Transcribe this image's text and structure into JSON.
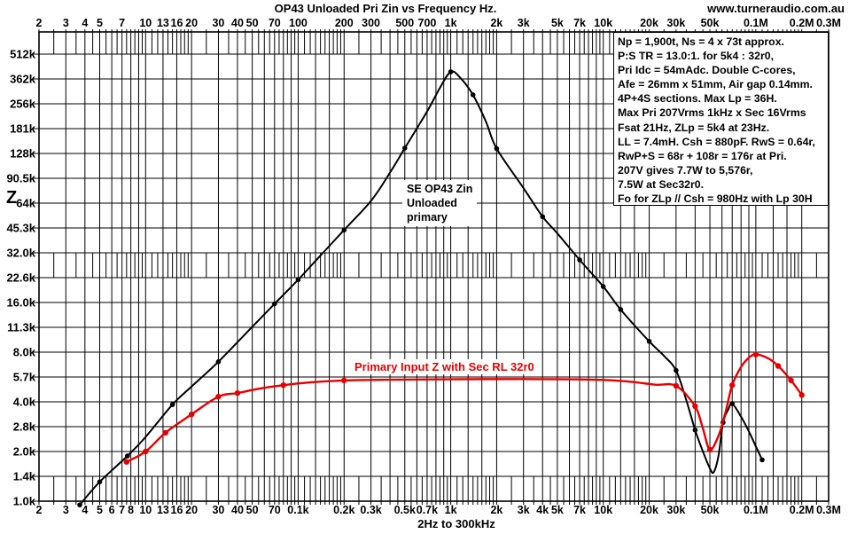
{
  "header": {
    "title": "OP43 Unloaded Pri Zin vs Frequency Hz.",
    "website": "www.turneraudio.com.au"
  },
  "axis": {
    "y_symbol": "Z",
    "x_bottom_caption": "2Hz to 300kHz"
  },
  "annotation": {
    "lines": [
      "Np = 1,900t, Ns = 4 x 73t approx.",
      "P:S TR = 13.0:1. for 5k4 : 32r0,",
      "Pri Idc = 54mAdc. Double C-cores,",
      "Afe = 26mm x 51mm, Air gap  0.14mm.",
      "4P+4S sections.  Max Lp = 36H.",
      "Max Pri 207Vrms 1kHz x Sec 16Vrms",
      "Fsat 21Hz, ZLp = 5k4 at 23Hz.",
      "LL = 7.4mH. Csh = 880pF.  RwS = 0.64r,",
      "RwP+S = 68r + 108r = 176r at Pri.",
      "207V gives 7.7W to 5,576r,",
      "7.5W at Sec32r0.",
      "Fo for ZLp // Csh = 980Hz with Lp 30H"
    ]
  },
  "curve_labels": {
    "black": [
      "SE OP43 Zin",
      "Unloaded",
      "primary"
    ],
    "red": "Primary Input Z with Sec RL 32r0"
  },
  "chart_data": {
    "type": "line",
    "title": "OP43 Unloaded Pri Zin vs Frequency Hz.",
    "xlabel": "2Hz to 300kHz",
    "ylabel": "Z (ohms)",
    "x_scale": "log",
    "y_scale": "log",
    "grid": "on",
    "xlim": [
      2,
      300000
    ],
    "ylim": [
      1000,
      698000
    ],
    "x_ticks_top": [
      [
        2,
        "2"
      ],
      [
        3,
        "3"
      ],
      [
        4,
        "4"
      ],
      [
        5,
        "5"
      ],
      [
        7,
        "7"
      ],
      [
        10,
        "10"
      ],
      [
        13,
        "13"
      ],
      [
        16,
        "16"
      ],
      [
        20,
        "20"
      ],
      [
        30,
        "30"
      ],
      [
        40,
        "40"
      ],
      [
        50,
        "50"
      ],
      [
        70,
        "70"
      ],
      [
        100,
        "100"
      ],
      [
        200,
        "200"
      ],
      [
        300,
        "300"
      ],
      [
        500,
        "500"
      ],
      [
        700,
        "700"
      ],
      [
        1000,
        "1k"
      ],
      [
        2000,
        "2k"
      ],
      [
        3000,
        "3k"
      ],
      [
        5000,
        "5k"
      ],
      [
        7000,
        "7k"
      ],
      [
        10000,
        "10k"
      ],
      [
        20000,
        "20k"
      ],
      [
        30000,
        "30k"
      ],
      [
        50000,
        "50k"
      ],
      [
        100000,
        "0.1M"
      ],
      [
        200000,
        "0.2M"
      ],
      [
        300000,
        "0.3M"
      ]
    ],
    "x_ticks_bottom": [
      [
        2,
        "2"
      ],
      [
        3,
        "3"
      ],
      [
        4,
        "4"
      ],
      [
        5,
        "5"
      ],
      [
        6,
        "6"
      ],
      [
        7,
        "7"
      ],
      [
        8,
        "8"
      ],
      [
        10,
        "10"
      ],
      [
        13,
        "13"
      ],
      [
        16,
        "16"
      ],
      [
        20,
        "20"
      ],
      [
        30,
        "30"
      ],
      [
        40,
        "40"
      ],
      [
        50,
        "50"
      ],
      [
        70,
        "70"
      ],
      [
        100,
        "0.1k"
      ],
      [
        200,
        "0.2k"
      ],
      [
        300,
        "0.3k"
      ],
      [
        500,
        "0.5k"
      ],
      [
        700,
        "0.7k"
      ],
      [
        1000,
        "1k"
      ],
      [
        2000,
        "2k"
      ],
      [
        3000,
        "3k"
      ],
      [
        4000,
        "4k"
      ],
      [
        5000,
        "5k"
      ],
      [
        7000,
        "7k"
      ],
      [
        10000,
        "10k"
      ],
      [
        20000,
        "20k"
      ],
      [
        30000,
        "30k"
      ],
      [
        50000,
        "50k"
      ],
      [
        100000,
        "0.1M"
      ],
      [
        200000,
        "0.2M"
      ],
      [
        300000,
        "0.3M"
      ]
    ],
    "y_ticks": [
      [
        512000,
        "512k"
      ],
      [
        362039,
        "362k"
      ],
      [
        256000,
        "256k"
      ],
      [
        181019,
        "181k"
      ],
      [
        128000,
        "128k"
      ],
      [
        90510,
        "90.5k"
      ],
      [
        64000,
        "64k"
      ],
      [
        45255,
        "45.3k"
      ],
      [
        32000,
        "32.0k"
      ],
      [
        22627,
        "22.6k"
      ],
      [
        16000,
        "16.0k"
      ],
      [
        11314,
        "11.3k"
      ],
      [
        8000,
        "8.0k"
      ],
      [
        5657,
        "5.7k"
      ],
      [
        4000,
        "4.0k"
      ],
      [
        2828,
        "2.8k"
      ],
      [
        2000,
        "2.0k"
      ],
      [
        1414,
        "1.4k"
      ],
      [
        1000,
        "1.0k"
      ]
    ],
    "grid_spec": {
      "major_multipliers": [
        1,
        1.3,
        1.6,
        2,
        3,
        4,
        5,
        6,
        7,
        8,
        9
      ],
      "minor_multipliers": [
        1.1,
        1.2,
        1.4,
        1.5,
        1.7,
        1.8,
        1.9,
        2.5,
        3.5,
        4.5,
        5.5,
        6.5,
        7.5,
        8.5,
        9.5
      ],
      "decades": [
        1,
        10,
        100,
        1000,
        10000,
        100000
      ],
      "minor_bands_z": [
        [
          512000,
          698000
        ],
        [
          22627,
          32000
        ],
        [
          1000,
          1414
        ]
      ]
    },
    "series": [
      {
        "name": "SE OP43 Zin Unloaded primary",
        "color": "#000000",
        "marker_radius": 2.8,
        "line_width": 2,
        "points": [
          [
            3.7,
            950,
            1
          ],
          [
            5,
            1310,
            1
          ],
          [
            7.6,
            1880,
            1
          ],
          [
            10,
            2450,
            0
          ],
          [
            15,
            3850,
            1
          ],
          [
            20,
            4950,
            0
          ],
          [
            30,
            7000,
            1
          ],
          [
            50,
            11400,
            0
          ],
          [
            70,
            15700,
            1
          ],
          [
            100,
            22000,
            1
          ],
          [
            140,
            30800,
            0
          ],
          [
            200,
            44000,
            1
          ],
          [
            300,
            66000,
            0
          ],
          [
            400,
            98000,
            0
          ],
          [
            500,
            138000,
            1
          ],
          [
            700,
            230000,
            0
          ],
          [
            850,
            320000,
            0
          ],
          [
            1000,
            400000,
            1
          ],
          [
            1150,
            370000,
            0
          ],
          [
            1400,
            290000,
            1
          ],
          [
            1700,
            200000,
            0
          ],
          [
            2000,
            137000,
            1
          ],
          [
            3000,
            79000,
            0
          ],
          [
            4000,
            53000,
            1
          ],
          [
            5000,
            42000,
            0
          ],
          [
            7000,
            29000,
            1
          ],
          [
            10000,
            20000,
            1
          ],
          [
            13000,
            14500,
            1
          ],
          [
            20000,
            9300,
            1
          ],
          [
            25000,
            7600,
            0
          ],
          [
            30000,
            6200,
            1
          ],
          [
            35000,
            4100,
            0
          ],
          [
            40000,
            2700,
            1
          ],
          [
            45000,
            2000,
            0
          ],
          [
            50000,
            1580,
            0
          ],
          [
            53000,
            1500,
            0
          ],
          [
            57000,
            1900,
            0
          ],
          [
            61000,
            3000,
            1
          ],
          [
            66000,
            3600,
            0
          ],
          [
            70000,
            3900,
            1
          ],
          [
            80000,
            3250,
            0
          ],
          [
            90000,
            2650,
            0
          ],
          [
            100000,
            2150,
            0
          ],
          [
            110000,
            1780,
            1
          ]
        ]
      },
      {
        "name": "Primary Input Z with Sec RL 32r0",
        "color": "#e80000",
        "marker_radius": 3.2,
        "line_width": 2.4,
        "points": [
          [
            7.5,
            1730,
            1
          ],
          [
            10,
            2000,
            1
          ],
          [
            13.5,
            2600,
            1
          ],
          [
            20,
            3360,
            1
          ],
          [
            30,
            4300,
            1
          ],
          [
            40,
            4520,
            1
          ],
          [
            55,
            4800,
            0
          ],
          [
            80,
            5050,
            1
          ],
          [
            120,
            5250,
            0
          ],
          [
            200,
            5390,
            1
          ],
          [
            400,
            5450,
            0
          ],
          [
            1000,
            5480,
            0
          ],
          [
            3000,
            5500,
            0
          ],
          [
            7000,
            5470,
            0
          ],
          [
            10000,
            5430,
            0
          ],
          [
            15000,
            5300,
            0
          ],
          [
            22000,
            5080,
            0
          ],
          [
            30000,
            5000,
            1
          ],
          [
            40000,
            3760,
            1
          ],
          [
            45000,
            2750,
            0
          ],
          [
            50000,
            2050,
            1
          ],
          [
            57000,
            2500,
            0
          ],
          [
            63000,
            3400,
            0
          ],
          [
            70000,
            5050,
            1
          ],
          [
            80000,
            6500,
            0
          ],
          [
            90000,
            7400,
            0
          ],
          [
            100000,
            7750,
            1
          ],
          [
            120000,
            7350,
            0
          ],
          [
            140000,
            6600,
            1
          ],
          [
            170000,
            5400,
            1
          ],
          [
            200000,
            4400,
            1
          ]
        ]
      }
    ]
  }
}
